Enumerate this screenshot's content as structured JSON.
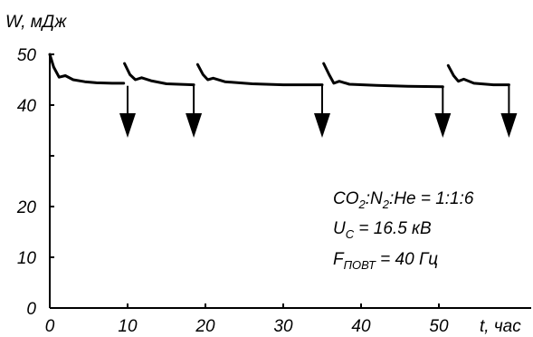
{
  "chart_data": {
    "type": "line",
    "ylabel": "W, мДж",
    "xlabel": "t, час",
    "xlim": [
      0,
      60
    ],
    "ylim": [
      0,
      50
    ],
    "x_ticks": [
      0,
      10,
      20,
      30,
      40,
      50
    ],
    "y_ticks": [
      0,
      10,
      20,
      40,
      50
    ],
    "y_minor_ticks": [
      30
    ],
    "grid": false,
    "series": [
      {
        "segments": [
          {
            "x": [
              0,
              0.5,
              1.2,
              2.0,
              3.0,
              4.5,
              6.0,
              8.0,
              9.5
            ],
            "y": [
              50,
              47.5,
              45.5,
              45.8,
              45.0,
              44.6,
              44.4,
              44.3,
              44.3
            ]
          },
          {
            "x": [
              9.6,
              10.3,
              11.0,
              11.8,
              13.0,
              15.0,
              18.5
            ],
            "y": [
              48.2,
              46.0,
              45.0,
              45.4,
              44.8,
              44.2,
              44.0
            ]
          },
          {
            "x": [
              19.0,
              19.7,
              20.3,
              21.0,
              22.5,
              26.0,
              30.0,
              35.0
            ],
            "y": [
              48.0,
              46.0,
              45.0,
              45.3,
              44.6,
              44.2,
              44.0,
              44.0
            ]
          },
          {
            "x": [
              35.2,
              35.9,
              36.5,
              37.2,
              38.5,
              42.0,
              46.0,
              50.5
            ],
            "y": [
              48.2,
              46.0,
              44.3,
              44.7,
              44.1,
              43.9,
              43.7,
              43.6
            ]
          },
          {
            "x": [
              51.2,
              51.9,
              52.5,
              53.2,
              54.5,
              57.0,
              59.0
            ],
            "y": [
              47.8,
              45.8,
              44.7,
              45.1,
              44.3,
              44.0,
              44.0
            ]
          }
        ]
      }
    ],
    "arrows_at_x": [
      10,
      18.5,
      35,
      50.5,
      59
    ]
  },
  "annotations": {
    "ratio": {
      "a": "CO",
      "a_sub": "2",
      "b": ":N",
      "b_sub": "2",
      "c": ":He = 1:1:6"
    },
    "voltage": {
      "a": "U",
      "a_sub": "C",
      "b": " = 16.5 кВ"
    },
    "frequency": {
      "a": "F",
      "a_sub": "ПОВТ",
      "b": " = 40 Гц"
    }
  }
}
